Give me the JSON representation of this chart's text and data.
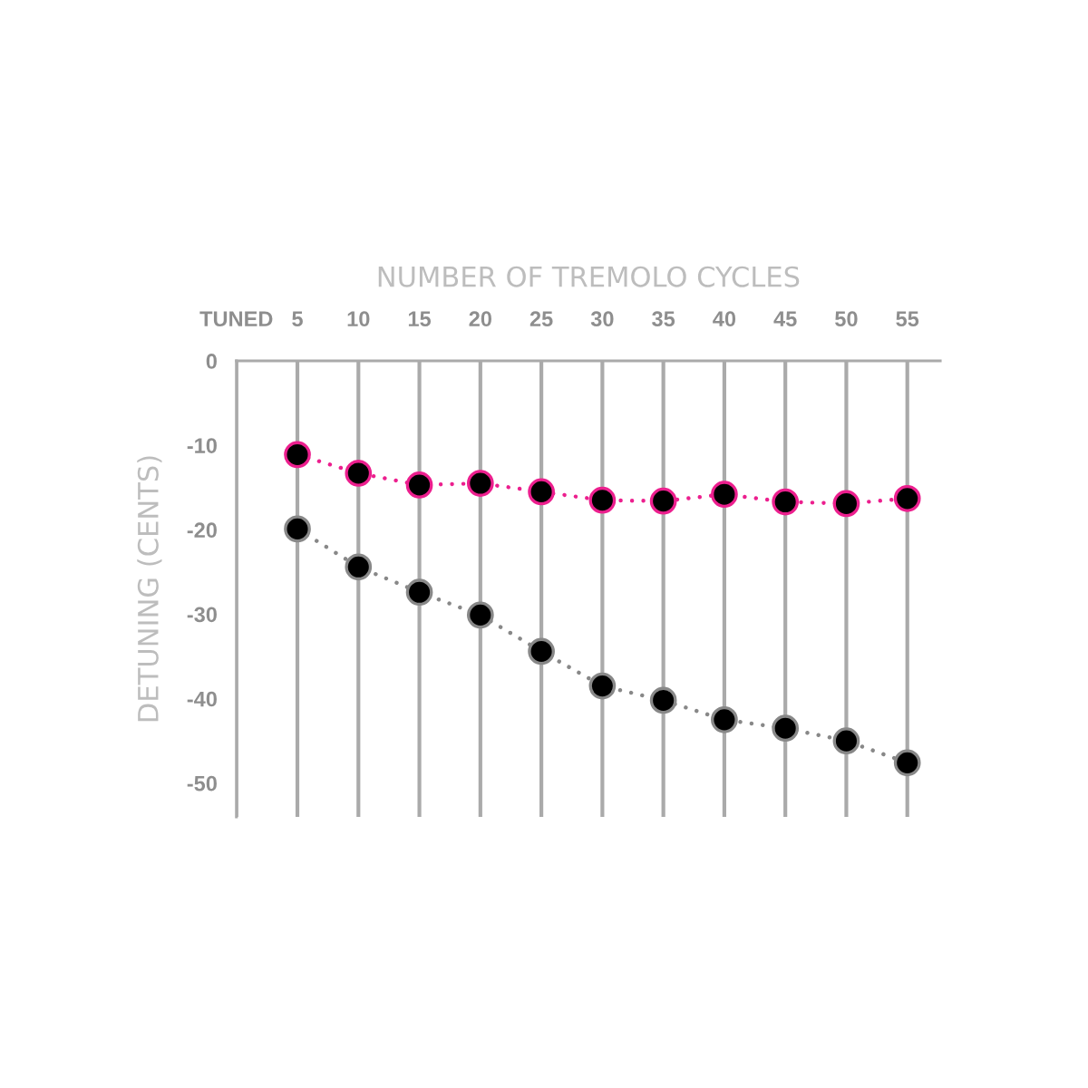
{
  "chart_data": {
    "type": "line",
    "xlabel": "NUMBER OF TREMOLO CYCLES",
    "ylabel": "DETUNING (CENTS)",
    "x": [
      5,
      10,
      15,
      20,
      25,
      30,
      35,
      40,
      45,
      50,
      55
    ],
    "series": [
      {
        "color": "#ec1f8e",
        "values": [
          -11.1,
          -13.3,
          -14.7,
          -14.5,
          -15.5,
          -16.5,
          -16.6,
          -15.8,
          -16.7,
          -16.9,
          -16.3
        ]
      },
      {
        "color": "#888888",
        "values": [
          -19.9,
          -24.4,
          -27.4,
          -30.1,
          -34.4,
          -38.5,
          -40.2,
          -42.5,
          -43.5,
          -45.0,
          -47.6
        ]
      }
    ],
    "xlim": [
      0,
      57.7
    ],
    "xticks": [
      {
        "value": 0,
        "label": "TUNED"
      },
      5,
      10,
      15,
      20,
      25,
      30,
      35,
      40,
      45,
      50,
      55
    ],
    "ylim": [
      -54,
      0
    ],
    "yticks": [
      0,
      -10,
      -20,
      -30,
      -40,
      -50
    ],
    "grid": "x",
    "marker": "circle",
    "line_style": "dotted"
  }
}
